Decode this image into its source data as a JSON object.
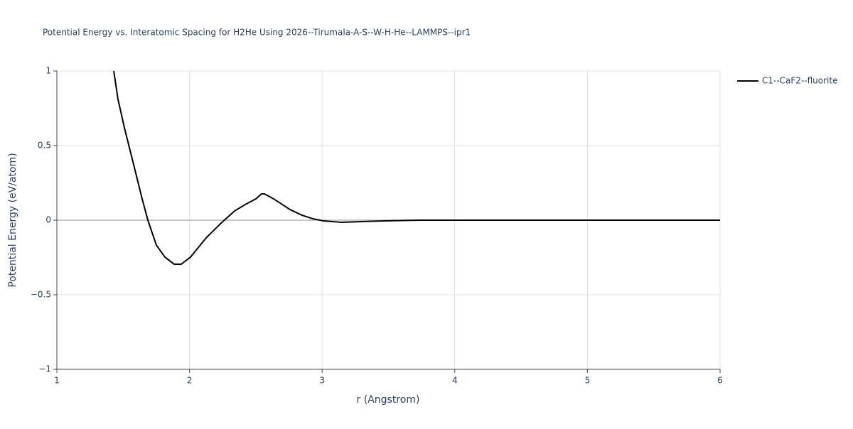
{
  "chart_data": {
    "type": "line",
    "title": "Potential Energy vs. Interatomic Spacing for H2He Using 2026--Tirumala-A-S--W-H-He--LAMMPS--ipr1",
    "x_label": "r (Angstrom)",
    "y_label": "Potential Energy (eV/atom)",
    "x": [
      1.429,
      1.461,
      1.509,
      1.59,
      1.643,
      1.686,
      1.75,
      1.815,
      1.884,
      1.938,
      2.007,
      2.125,
      2.233,
      2.34,
      2.42,
      2.5,
      2.543,
      2.565,
      2.634,
      2.758,
      2.849,
      2.929,
      3.01,
      3.144,
      3.465,
      3.733,
      4.5,
      5.0,
      6.0
    ],
    "series": [
      {
        "name": "C1--CaF2--fluorite",
        "color": "#000000",
        "values": [
          1.0,
          0.81,
          0.62,
          0.333,
          0.143,
          0.0,
          -0.167,
          -0.248,
          -0.295,
          -0.295,
          -0.248,
          -0.119,
          -0.024,
          0.062,
          0.105,
          0.143,
          0.176,
          0.176,
          0.143,
          0.071,
          0.033,
          0.01,
          -0.005,
          -0.014,
          -0.005,
          0.0,
          0.0,
          0.0,
          0.0
        ]
      }
    ],
    "xlim": [
      1,
      6
    ],
    "ylim": [
      -1,
      1
    ],
    "xticks": [
      1,
      2,
      3,
      4,
      5,
      6
    ],
    "yticks": [
      {
        "value": -1,
        "label": "−1"
      },
      {
        "value": -0.5,
        "label": "−0.5"
      },
      0,
      0.5,
      1
    ],
    "grid": true,
    "legend": "right"
  }
}
